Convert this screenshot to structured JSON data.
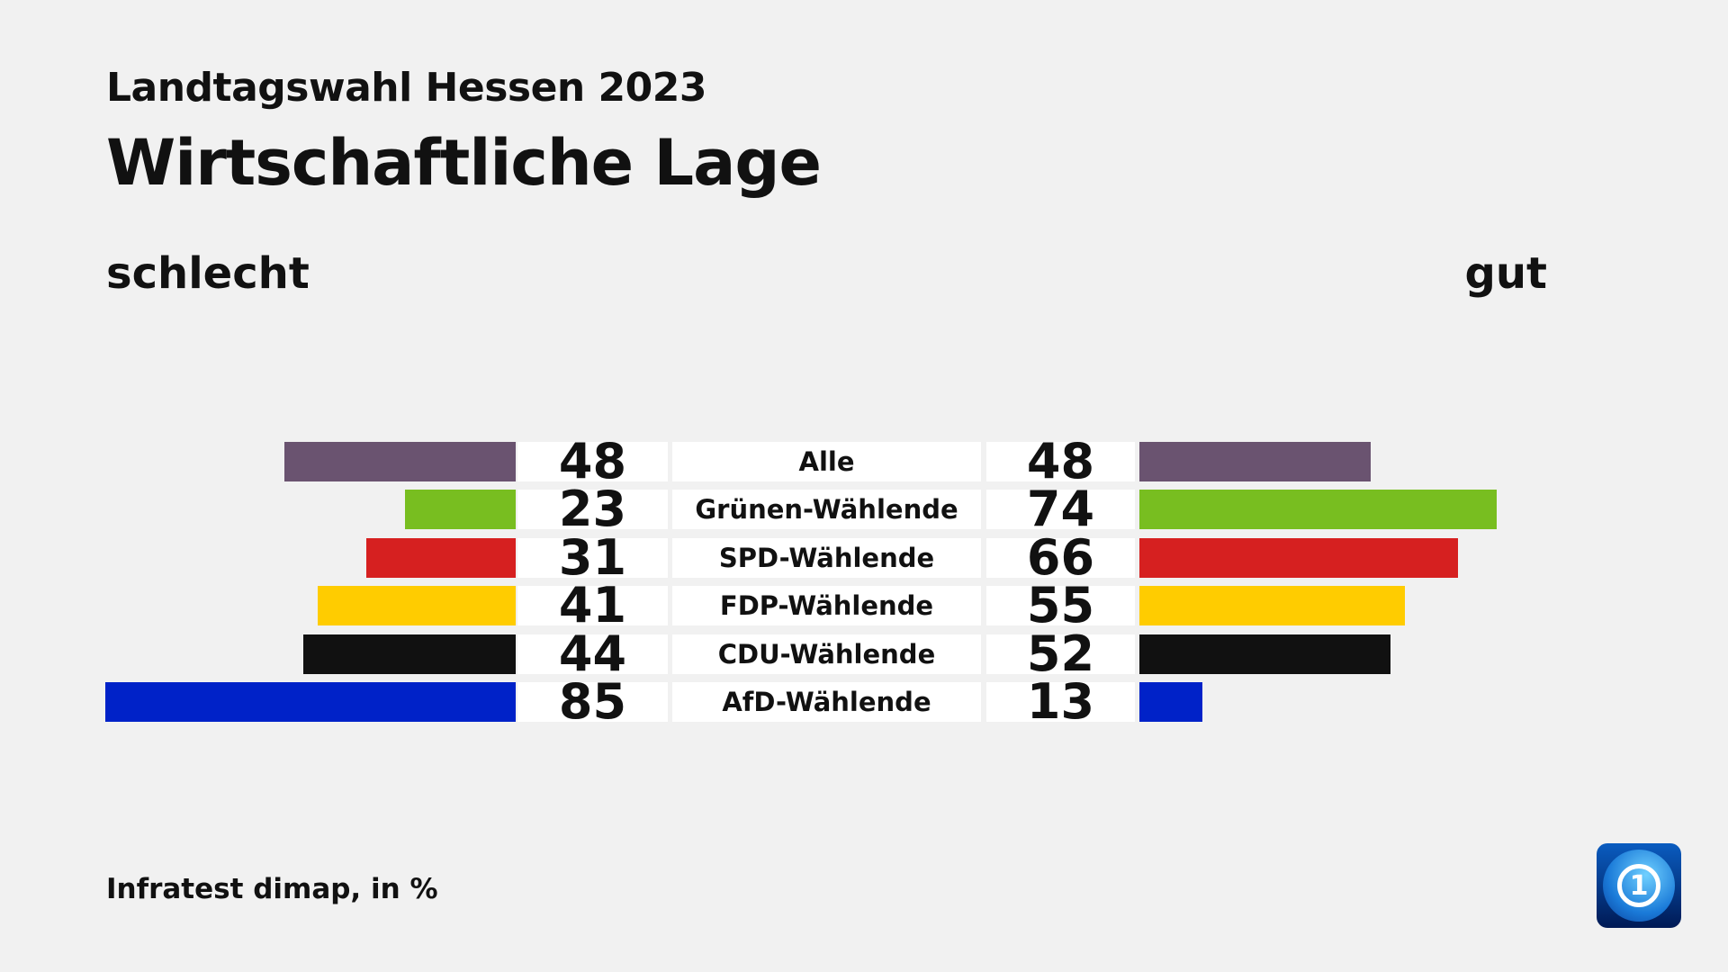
{
  "chart_data": {
    "type": "bar",
    "subtitle": "Landtagswahl Hessen 2023",
    "title": "Wirtschaftliche Lage",
    "left_label": "schlecht",
    "right_label": "gut",
    "source": "Infratest dimap, in %",
    "categories": [
      "Alle",
      "Grünen-Wählende",
      "SPD-Wählende",
      "FDP-Wählende",
      "CDU-Wählende",
      "AfD-Wählende"
    ],
    "series": [
      {
        "name": "schlecht",
        "values": [
          48,
          23,
          31,
          41,
          44,
          85
        ]
      },
      {
        "name": "gut",
        "values": [
          48,
          74,
          66,
          55,
          52,
          13
        ]
      }
    ],
    "colors": [
      "#6a5370",
      "#78be20",
      "#d62020",
      "#ffcc00",
      "#111111",
      "#0022c8"
    ]
  },
  "logo": {
    "name": "tagesschau-logo",
    "text": "1"
  }
}
